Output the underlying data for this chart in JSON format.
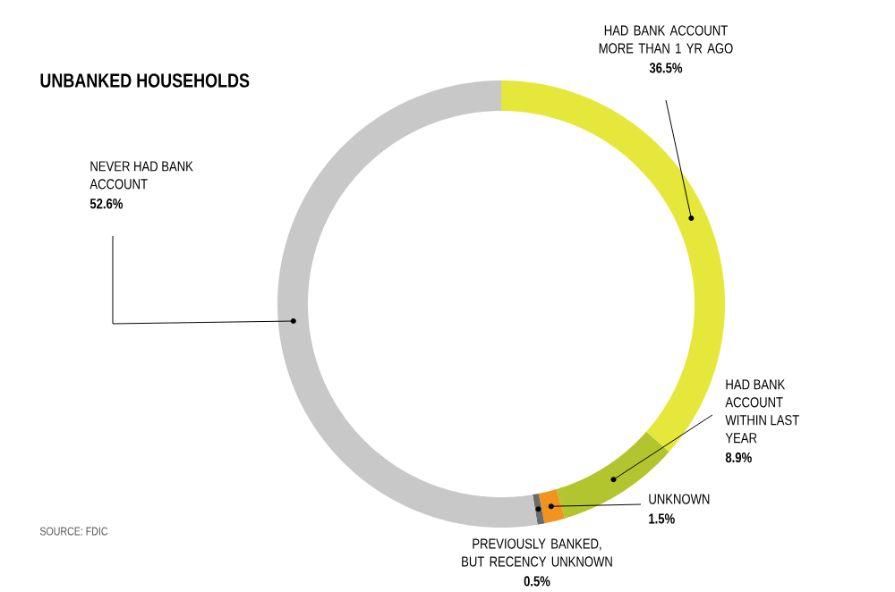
{
  "chart_data": {
    "type": "donut",
    "title": "UNBANKED HOUSEHOLDS",
    "categories": [
      "HAD BANK ACCOUNT MORE THAN 1 YR AGO",
      "HAD BANK ACCOUNT WITHIN LAST YEAR",
      "UNKNOWN",
      "PREVIOUSLY BANKED, BUT RECENCY UNKNOWN",
      "NEVER HAD BANK ACCOUNT"
    ],
    "values": [
      36.5,
      8.9,
      1.5,
      0.5,
      52.6
    ],
    "colors": [
      "#e5e83a",
      "#b2c52f",
      "#f0931f",
      "#6b6b6b",
      "#c8c8c8"
    ],
    "value_labels": [
      "36.5%",
      "8.9%",
      "1.5%",
      "0.5%",
      "52.6%"
    ],
    "annotations": [
      "SOURCE: FDIC"
    ]
  }
}
